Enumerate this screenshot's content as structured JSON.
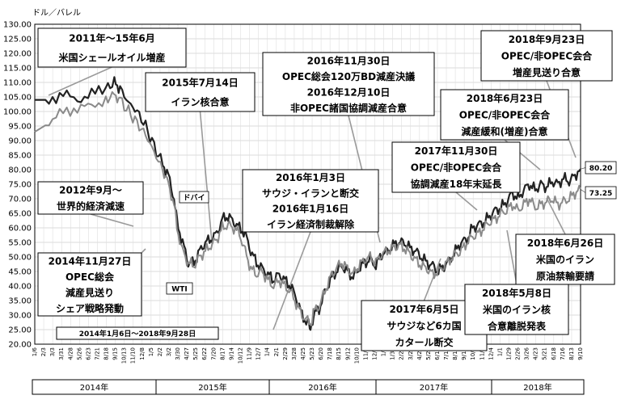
{
  "chart_data": {
    "type": "line",
    "unit_label": "ドル／バレル",
    "period_label": "2014年1月6日～2018年9月28日",
    "ylim": [
      20,
      130
    ],
    "y_ticks": [
      "130.00",
      "125.00",
      "120.00",
      "115.00",
      "110.00",
      "105.00",
      "100.00",
      "95.00",
      "90.00",
      "85.00",
      "80.00",
      "75.00",
      "70.00",
      "65.00",
      "60.00",
      "55.00",
      "50.00",
      "45.00",
      "40.00",
      "35.00",
      "30.00",
      "25.00",
      "20.00"
    ],
    "x_ticks": [
      "1/6",
      "2/3",
      "3/3",
      "3/31",
      "4/28",
      "5/26",
      "6/23",
      "7/21",
      "8/18",
      "9/15",
      "10/13",
      "11/10",
      "12/8",
      "1/5",
      "2/2",
      "3/2",
      "3/30",
      "4/27",
      "5/25",
      "6/22",
      "7/20",
      "8/17",
      "9/14",
      "10/12",
      "11/9",
      "12/7",
      "1/4",
      "2/1",
      "2/29",
      "3/28",
      "4/25",
      "5/23",
      "6/20",
      "7/18",
      "8/15",
      "9/12",
      "10/10",
      "11/7",
      "12/5",
      "1/2",
      "1/30",
      "2/27",
      "3/27",
      "4/24",
      "5/22",
      "6/19",
      "7/17",
      "8/14",
      "9/11",
      "10/9",
      "11/6",
      "12/4",
      "1/1",
      "1/29",
      "2/26",
      "3/26",
      "4/23",
      "5/21",
      "6/18",
      "7/16",
      "8/13",
      "9/10"
    ],
    "years": [
      "2014年",
      "2015年",
      "2016年",
      "2017年",
      "2018年"
    ],
    "grid": true,
    "series": [
      {
        "name": "ドバイ",
        "color": "#222222",
        "end_label": "80.20",
        "points": [
          [
            0,
            104
          ],
          [
            5,
            104
          ],
          [
            10,
            106
          ],
          [
            15,
            104
          ],
          [
            20,
            106
          ],
          [
            25,
            108
          ],
          [
            28,
            110
          ],
          [
            30,
            108
          ],
          [
            33,
            103
          ],
          [
            36,
            100
          ],
          [
            39,
            95
          ],
          [
            42,
            88
          ],
          [
            45,
            82
          ],
          [
            47,
            78
          ],
          [
            49,
            70
          ],
          [
            50,
            62
          ],
          [
            52,
            55
          ],
          [
            54,
            48
          ],
          [
            56,
            48
          ],
          [
            58,
            52
          ],
          [
            60,
            55
          ],
          [
            62,
            56
          ],
          [
            64,
            58
          ],
          [
            66,
            63
          ],
          [
            68,
            64
          ],
          [
            70,
            62
          ],
          [
            72,
            60
          ],
          [
            74,
            58
          ],
          [
            76,
            52
          ],
          [
            78,
            48
          ],
          [
            80,
            46
          ],
          [
            82,
            44
          ],
          [
            84,
            42
          ],
          [
            86,
            44
          ],
          [
            88,
            42
          ],
          [
            90,
            40
          ],
          [
            92,
            36
          ],
          [
            94,
            30
          ],
          [
            96,
            27
          ],
          [
            97,
            25
          ],
          [
            98,
            30
          ],
          [
            100,
            32
          ],
          [
            102,
            38
          ],
          [
            104,
            42
          ],
          [
            106,
            45
          ],
          [
            108,
            47
          ],
          [
            110,
            45
          ],
          [
            112,
            43
          ],
          [
            114,
            46
          ],
          [
            116,
            48
          ],
          [
            118,
            49
          ],
          [
            120,
            47
          ],
          [
            122,
            51
          ],
          [
            124,
            52
          ],
          [
            126,
            54
          ],
          [
            128,
            55
          ],
          [
            130,
            55
          ],
          [
            132,
            53
          ],
          [
            134,
            52
          ],
          [
            136,
            50
          ],
          [
            138,
            48
          ],
          [
            140,
            47
          ],
          [
            142,
            45
          ],
          [
            144,
            47
          ],
          [
            146,
            49
          ],
          [
            148,
            52
          ],
          [
            150,
            55
          ],
          [
            152,
            56
          ],
          [
            154,
            60
          ],
          [
            156,
            61
          ],
          [
            158,
            62
          ],
          [
            160,
            64
          ],
          [
            162,
            66
          ],
          [
            164,
            67
          ],
          [
            166,
            69
          ],
          [
            168,
            72
          ],
          [
            170,
            70
          ],
          [
            172,
            73
          ],
          [
            174,
            75
          ],
          [
            176,
            73
          ],
          [
            178,
            75
          ],
          [
            180,
            74
          ],
          [
            182,
            76
          ],
          [
            184,
            75
          ],
          [
            186,
            77
          ],
          [
            188,
            76
          ],
          [
            190,
            78
          ],
          [
            192,
            80.2
          ]
        ]
      },
      {
        "name": "WTI",
        "color": "#8a8a8a",
        "end_label": "73.25",
        "points": [
          [
            0,
            93
          ],
          [
            5,
            96
          ],
          [
            10,
            100
          ],
          [
            15,
            101
          ],
          [
            20,
            102
          ],
          [
            25,
            104
          ],
          [
            28,
            106
          ],
          [
            30,
            104
          ],
          [
            33,
            100
          ],
          [
            36,
            96
          ],
          [
            39,
            92
          ],
          [
            42,
            86
          ],
          [
            45,
            80
          ],
          [
            47,
            75
          ],
          [
            49,
            68
          ],
          [
            50,
            60
          ],
          [
            52,
            52
          ],
          [
            54,
            48
          ],
          [
            56,
            47
          ],
          [
            58,
            50
          ],
          [
            60,
            52
          ],
          [
            62,
            54
          ],
          [
            64,
            56
          ],
          [
            66,
            60
          ],
          [
            68,
            61
          ],
          [
            70,
            60
          ],
          [
            72,
            58
          ],
          [
            74,
            52
          ],
          [
            76,
            46
          ],
          [
            78,
            44
          ],
          [
            80,
            45
          ],
          [
            82,
            42
          ],
          [
            84,
            40
          ],
          [
            86,
            42
          ],
          [
            88,
            40
          ],
          [
            90,
            38
          ],
          [
            92,
            34
          ],
          [
            94,
            30
          ],
          [
            96,
            28
          ],
          [
            97,
            27
          ],
          [
            98,
            31
          ],
          [
            100,
            33
          ],
          [
            102,
            38
          ],
          [
            104,
            43
          ],
          [
            106,
            46
          ],
          [
            108,
            48
          ],
          [
            110,
            46
          ],
          [
            112,
            44
          ],
          [
            114,
            47
          ],
          [
            116,
            49
          ],
          [
            118,
            50
          ],
          [
            120,
            48
          ],
          [
            122,
            51
          ],
          [
            124,
            52
          ],
          [
            126,
            53
          ],
          [
            128,
            54
          ],
          [
            130,
            53
          ],
          [
            132,
            51
          ],
          [
            134,
            49
          ],
          [
            136,
            47
          ],
          [
            138,
            46
          ],
          [
            140,
            44
          ],
          [
            142,
            45
          ],
          [
            144,
            47
          ],
          [
            146,
            49
          ],
          [
            148,
            51
          ],
          [
            150,
            52
          ],
          [
            152,
            55
          ],
          [
            154,
            57
          ],
          [
            156,
            58
          ],
          [
            158,
            60
          ],
          [
            160,
            62
          ],
          [
            162,
            63
          ],
          [
            164,
            65
          ],
          [
            166,
            66
          ],
          [
            168,
            68
          ],
          [
            170,
            66
          ],
          [
            172,
            68
          ],
          [
            174,
            70
          ],
          [
            176,
            67
          ],
          [
            178,
            68
          ],
          [
            180,
            69
          ],
          [
            182,
            70
          ],
          [
            184,
            68
          ],
          [
            186,
            69
          ],
          [
            188,
            70
          ],
          [
            190,
            72
          ],
          [
            192,
            73.25
          ]
        ]
      }
    ],
    "annotations": [
      {
        "lines": [
          "2011年～15年6月",
          "米国シェールオイル増産"
        ]
      },
      {
        "lines": [
          "2015年7月14日",
          "イラン核合意"
        ]
      },
      {
        "lines": [
          "2016年11月30日",
          "OPEC総会120万BD減産決議",
          "2016年12月10日",
          "非OPEC諸国協調減産合意"
        ]
      },
      {
        "lines": [
          "2018年9月23日",
          "OPEC/非OPEC会合",
          "増産見送り合意"
        ]
      },
      {
        "lines": [
          "2018年6月23日",
          "OPEC/非OPEC会合",
          "減産緩和(増産)合意"
        ]
      },
      {
        "lines": [
          "2017年11月30日",
          "OPEC/非OPEC会合",
          "協調減産18年末延長"
        ]
      },
      {
        "lines": [
          "2012年9月～",
          "世界的経済減速"
        ]
      },
      {
        "lines": [
          "2016年1月3日",
          "サウジ・イランと断交",
          "2016年1月16日",
          "イラン経済制裁解除"
        ]
      },
      {
        "lines": [
          "2014年11月27日",
          "OPEC総会",
          "減産見送り",
          "シェア戦略発動"
        ]
      },
      {
        "lines": [
          "2017年6月5日",
          "サウジなど6カ国",
          "カタール断交"
        ]
      },
      {
        "lines": [
          "2018年5月8日",
          "米国のイラン核",
          "合意離脱発表"
        ]
      },
      {
        "lines": [
          "2018年6月26日",
          "米国のイラン",
          "原油禁輸要請"
        ]
      }
    ]
  }
}
